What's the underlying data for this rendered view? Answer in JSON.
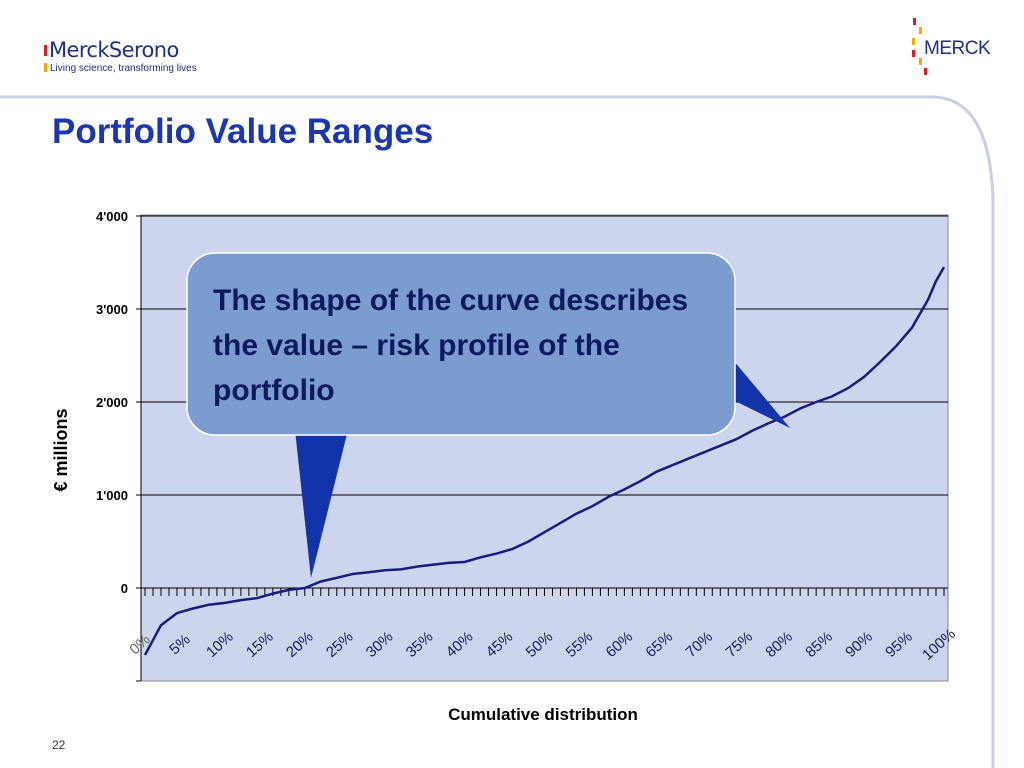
{
  "header": {
    "brand_name": "MerckSerono",
    "tagline": "Living science, transforming lives",
    "corporate_logo_text": "MERCK"
  },
  "slide": {
    "title": "Portfolio Value Ranges",
    "page_number": "22"
  },
  "callout": {
    "text": "The shape of the curve describes the value – risk profile of the portfolio"
  },
  "colors": {
    "plot_background": "#cdd5ee",
    "curve": "#1a1a80",
    "callout_fill": "#7b9ccf",
    "callout_pointer": "#1233aa",
    "title": "#1a36b0"
  },
  "chart_data": {
    "type": "line",
    "title": "",
    "xlabel": "Cumulative distribution",
    "ylabel": "€ millions",
    "ylim": [
      -1000,
      4000
    ],
    "xlim": [
      0,
      100
    ],
    "y_ticks": [
      {
        "value": 4000,
        "label": "4'000"
      },
      {
        "value": 3000,
        "label": "3'000"
      },
      {
        "value": 2000,
        "label": "2'000"
      },
      {
        "value": 1000,
        "label": "1'000"
      },
      {
        "value": 0,
        "label": "0"
      }
    ],
    "x_tick_labels": [
      "0%",
      "5%",
      "10%",
      "15%",
      "20%",
      "25%",
      "30%",
      "35%",
      "40%",
      "45%",
      "50%",
      "55%",
      "60%",
      "65%",
      "70%",
      "75%",
      "80%",
      "85%",
      "90%",
      "95%",
      "100%"
    ],
    "grid": true,
    "series": [
      {
        "x": [
          0,
          2,
          4,
          6,
          8,
          10,
          12,
          14,
          16,
          18,
          20,
          22,
          24,
          26,
          28,
          30,
          32,
          34,
          36,
          38,
          40,
          42,
          44,
          46,
          48,
          50,
          52,
          54,
          56,
          58,
          60,
          62,
          64,
          66,
          68,
          70,
          72,
          74,
          76,
          78,
          80,
          82,
          84,
          86,
          88,
          90,
          92,
          94,
          96,
          98,
          99,
          100
        ],
        "values": [
          -720,
          -400,
          -270,
          -220,
          -180,
          -160,
          -130,
          -110,
          -60,
          -20,
          0,
          70,
          110,
          150,
          170,
          190,
          200,
          230,
          250,
          270,
          280,
          330,
          370,
          420,
          500,
          600,
          700,
          800,
          880,
          980,
          1060,
          1150,
          1250,
          1320,
          1390,
          1460,
          1530,
          1600,
          1690,
          1770,
          1840,
          1930,
          2000,
          2060,
          2150,
          2270,
          2430,
          2600,
          2800,
          3100,
          3300,
          3450
        ]
      }
    ]
  }
}
